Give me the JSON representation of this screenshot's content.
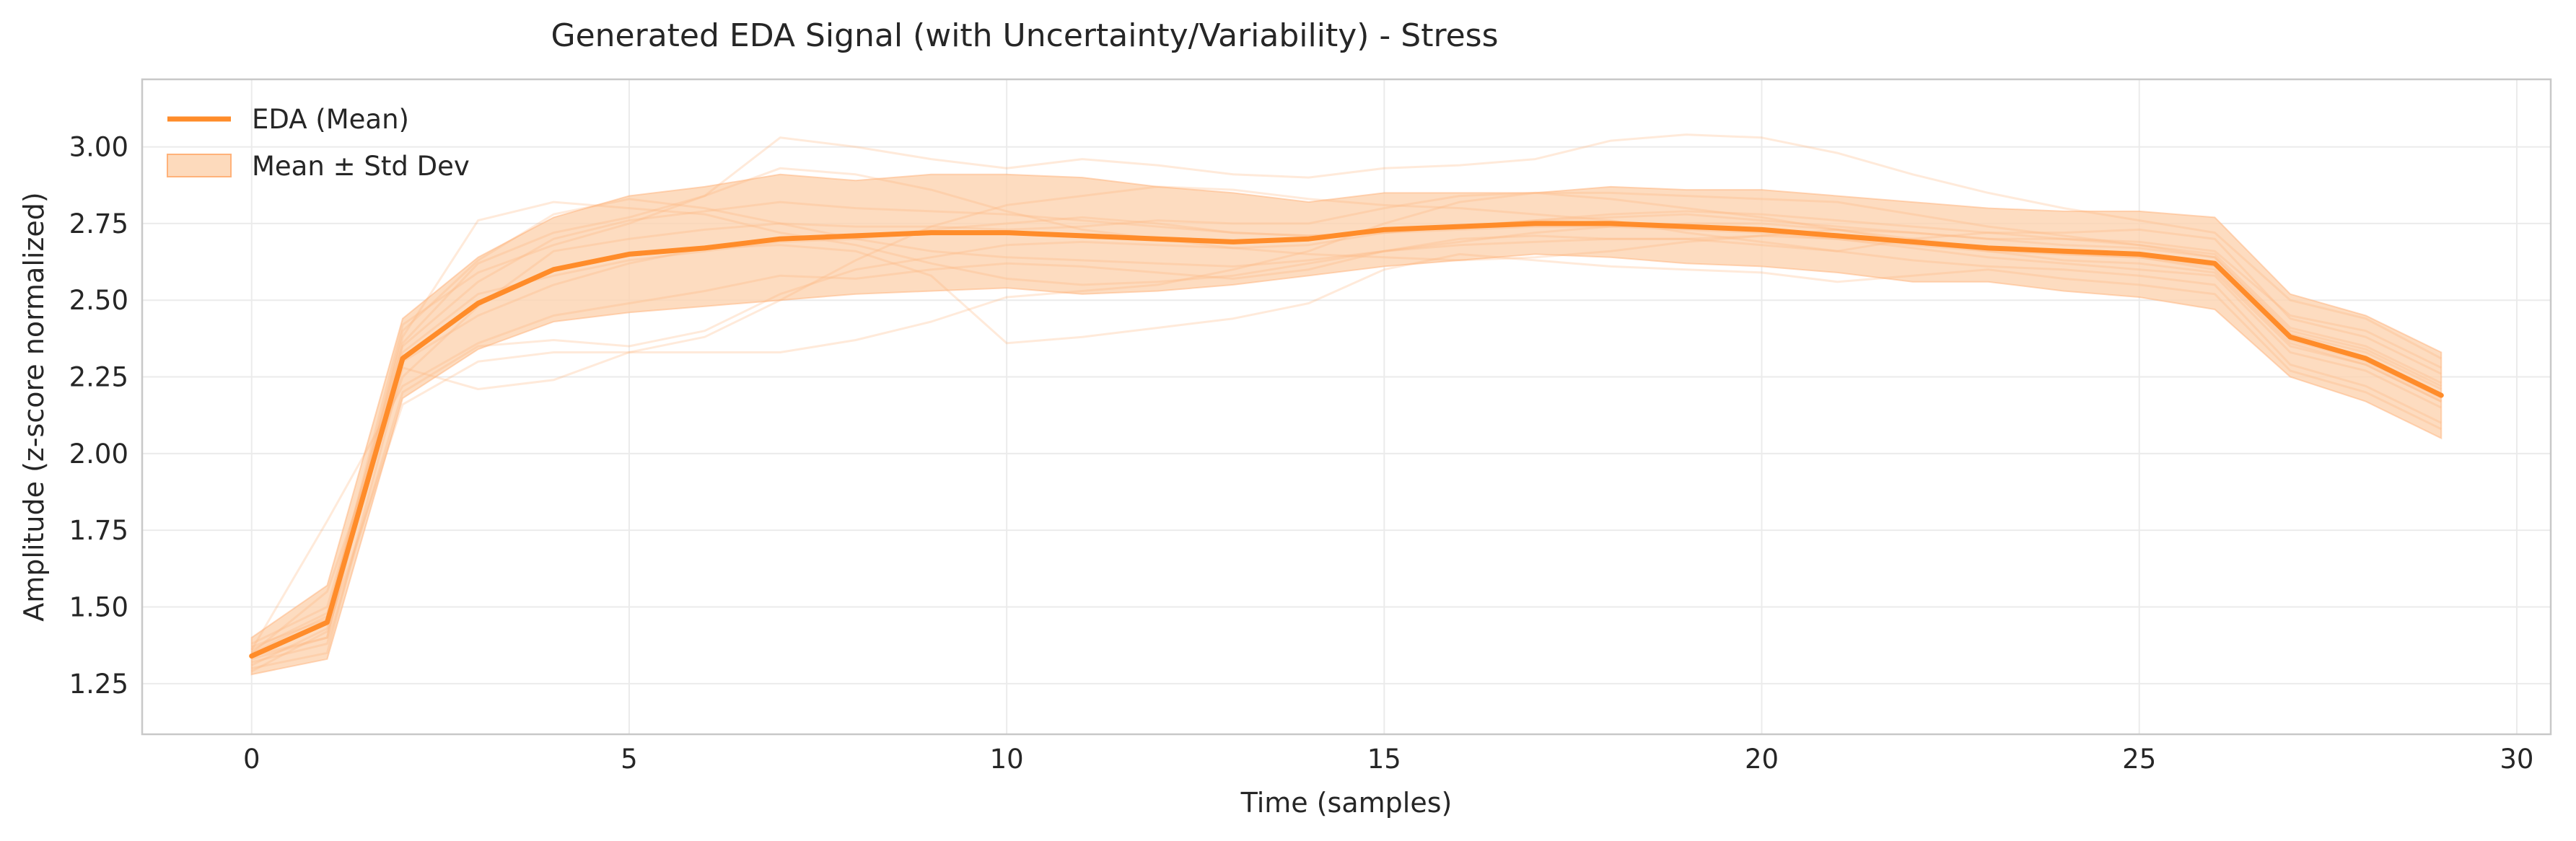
{
  "chart_data": {
    "type": "line",
    "title": "Generated EDA Signal (with Uncertainty/Variability) - Stress",
    "xlabel": "Time (samples)",
    "ylabel": "Amplitude (z-score normalized)",
    "xlim": [
      -1.45,
      30.45
    ],
    "ylim": [
      1.085,
      3.22
    ],
    "x_ticks": [
      0,
      5,
      10,
      15,
      20,
      25,
      30
    ],
    "y_ticks": [
      1.25,
      1.5,
      1.75,
      2.0,
      2.25,
      2.5,
      2.75,
      3.0
    ],
    "x_tick_labels": [
      "0",
      "5",
      "10",
      "15",
      "20",
      "25",
      "30"
    ],
    "y_tick_labels": [
      "1.25",
      "1.50",
      "1.75",
      "2.00",
      "2.25",
      "2.50",
      "2.75",
      "3.00"
    ],
    "grid": true,
    "legend_position": "top-left",
    "colors": {
      "mean": "#ff8c2a",
      "band": "#fdd3b0",
      "samples": "#ffb27a",
      "grid": "#ebebeb",
      "frame": "#c8c8c8"
    },
    "x": [
      0,
      1,
      2,
      3,
      4,
      5,
      6,
      7,
      8,
      9,
      10,
      11,
      12,
      13,
      14,
      15,
      16,
      17,
      18,
      19,
      20,
      21,
      22,
      23,
      24,
      25,
      26,
      27,
      28,
      29
    ],
    "series": [
      {
        "name": "EDA (Mean)",
        "role": "mean",
        "values": [
          1.34,
          1.45,
          2.31,
          2.49,
          2.6,
          2.65,
          2.67,
          2.7,
          2.71,
          2.72,
          2.72,
          2.71,
          2.7,
          2.69,
          2.7,
          2.73,
          2.74,
          2.75,
          2.75,
          2.74,
          2.73,
          2.71,
          2.69,
          2.67,
          2.66,
          2.65,
          2.62,
          2.38,
          2.31,
          2.19
        ]
      },
      {
        "name": "Mean ± Std Dev",
        "role": "band",
        "lower": [
          1.28,
          1.33,
          2.18,
          2.34,
          2.43,
          2.46,
          2.48,
          2.5,
          2.52,
          2.53,
          2.54,
          2.52,
          2.53,
          2.55,
          2.58,
          2.61,
          2.63,
          2.65,
          2.64,
          2.62,
          2.61,
          2.59,
          2.56,
          2.56,
          2.53,
          2.51,
          2.47,
          2.25,
          2.17,
          2.05
        ],
        "upper": [
          1.4,
          1.57,
          2.44,
          2.64,
          2.77,
          2.84,
          2.87,
          2.91,
          2.89,
          2.91,
          2.91,
          2.9,
          2.87,
          2.85,
          2.82,
          2.85,
          2.85,
          2.85,
          2.87,
          2.86,
          2.86,
          2.84,
          2.82,
          2.8,
          2.79,
          2.79,
          2.77,
          2.52,
          2.45,
          2.33
        ]
      }
    ],
    "samples": [
      [
        1.36,
        1.78,
        2.22,
        2.36,
        2.45,
        2.49,
        2.53,
        2.58,
        2.57,
        2.6,
        2.62,
        2.61,
        2.59,
        2.57,
        2.6,
        2.66,
        2.7,
        2.71,
        2.7,
        2.7,
        2.68,
        2.66,
        2.63,
        2.61,
        2.6,
        2.58,
        2.55,
        2.29,
        2.22,
        2.1
      ],
      [
        1.3,
        1.35,
        2.28,
        2.21,
        2.24,
        2.33,
        2.38,
        2.5,
        2.63,
        2.74,
        2.81,
        2.84,
        2.87,
        2.86,
        2.83,
        2.81,
        2.8,
        2.78,
        2.76,
        2.72,
        2.69,
        2.66,
        2.7,
        2.72,
        2.72,
        2.73,
        2.7,
        2.44,
        2.38,
        2.26
      ],
      [
        1.33,
        1.4,
        2.4,
        2.63,
        2.78,
        2.83,
        2.8,
        2.75,
        2.7,
        2.66,
        2.64,
        2.63,
        2.62,
        2.61,
        2.63,
        2.66,
        2.68,
        2.69,
        2.7,
        2.7,
        2.71,
        2.7,
        2.67,
        2.64,
        2.62,
        2.6,
        2.58,
        2.33,
        2.27,
        2.15
      ],
      [
        1.38,
        1.5,
        2.35,
        2.56,
        2.7,
        2.76,
        2.79,
        2.82,
        2.8,
        2.79,
        2.78,
        2.76,
        2.74,
        2.72,
        2.71,
        2.72,
        2.74,
        2.76,
        2.77,
        2.78,
        2.76,
        2.74,
        2.72,
        2.7,
        2.7,
        2.69,
        2.66,
        2.45,
        2.4,
        2.28
      ],
      [
        1.32,
        1.38,
        2.2,
        2.35,
        2.37,
        2.35,
        2.4,
        2.52,
        2.6,
        2.64,
        2.68,
        2.69,
        2.68,
        2.67,
        2.68,
        2.72,
        2.74,
        2.76,
        2.78,
        2.79,
        2.78,
        2.76,
        2.74,
        2.72,
        2.7,
        2.68,
        2.64,
        2.39,
        2.33,
        2.21
      ],
      [
        1.35,
        1.47,
        2.38,
        2.76,
        2.82,
        2.8,
        2.78,
        2.72,
        2.68,
        2.62,
        2.57,
        2.55,
        2.56,
        2.58,
        2.62,
        2.66,
        2.69,
        2.72,
        2.74,
        2.75,
        2.75,
        2.73,
        2.69,
        2.66,
        2.63,
        2.62,
        2.59,
        2.35,
        2.29,
        2.17
      ],
      [
        1.29,
        1.42,
        2.16,
        2.3,
        2.33,
        2.33,
        2.33,
        2.33,
        2.37,
        2.43,
        2.51,
        2.53,
        2.55,
        2.6,
        2.66,
        2.75,
        2.82,
        2.85,
        2.83,
        2.8,
        2.77,
        2.73,
        2.7,
        2.67,
        2.65,
        2.64,
        2.6,
        2.36,
        2.29,
        2.17
      ],
      [
        1.37,
        1.46,
        2.42,
        2.59,
        2.68,
        2.75,
        2.84,
        2.93,
        2.91,
        2.86,
        2.79,
        2.73,
        2.7,
        2.67,
        2.65,
        2.64,
        2.63,
        2.64,
        2.66,
        2.69,
        2.71,
        2.73,
        2.72,
        2.7,
        2.68,
        2.67,
        2.64,
        2.4,
        2.34,
        2.22
      ],
      [
        1.34,
        1.4,
        2.36,
        2.62,
        2.72,
        2.77,
        2.84,
        3.03,
        3.0,
        2.96,
        2.93,
        2.96,
        2.94,
        2.91,
        2.9,
        2.93,
        2.94,
        2.96,
        3.02,
        3.04,
        3.03,
        2.98,
        2.91,
        2.85,
        2.8,
        2.76,
        2.72,
        2.5,
        2.44,
        2.31
      ],
      [
        1.35,
        1.55,
        2.25,
        2.48,
        2.66,
        2.7,
        2.73,
        2.75,
        2.74,
        2.74,
        2.73,
        2.74,
        2.76,
        2.75,
        2.75,
        2.8,
        2.84,
        2.85,
        2.85,
        2.84,
        2.83,
        2.82,
        2.78,
        2.74,
        2.71,
        2.68,
        2.65,
        2.41,
        2.35,
        2.23
      ],
      [
        1.31,
        1.43,
        2.3,
        2.45,
        2.55,
        2.62,
        2.67,
        2.68,
        2.66,
        2.58,
        2.36,
        2.38,
        2.41,
        2.44,
        2.49,
        2.6,
        2.65,
        2.63,
        2.61,
        2.6,
        2.59,
        2.56,
        2.58,
        2.6,
        2.57,
        2.55,
        2.52,
        2.27,
        2.2,
        2.08
      ],
      [
        1.36,
        1.48,
        2.33,
        2.52,
        2.58,
        2.63,
        2.66,
        2.69,
        2.7,
        2.73,
        2.75,
        2.77,
        2.75,
        2.72,
        2.71,
        2.72,
        2.73,
        2.74,
        2.74,
        2.73,
        2.72,
        2.7,
        2.68,
        2.66,
        2.65,
        2.64,
        2.61,
        2.37,
        2.3,
        2.18
      ]
    ]
  }
}
